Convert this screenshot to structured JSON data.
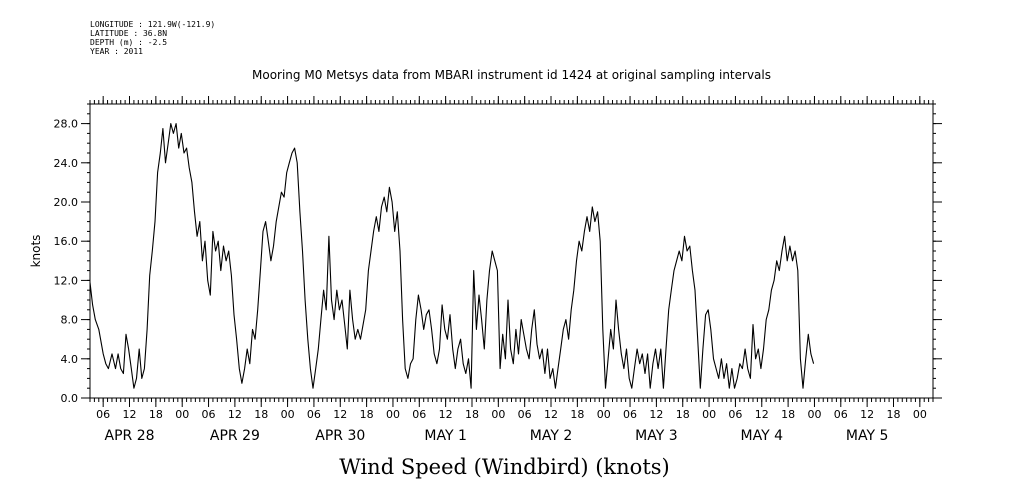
{
  "header": {
    "longitude": "LONGITUDE : 121.9W(-121.9)",
    "latitude": "LATITUDE : 36.8N",
    "depth": "DEPTH (m) : -2.5",
    "year": "YEAR : 2011"
  },
  "chart_data": {
    "type": "line",
    "title": "Mooring M0 Metsys data from MBARI instrument id 1424 at original sampling intervals",
    "xlabel": "Wind Speed (Windbird) (knots)",
    "ylabel": "knots",
    "ylim": [
      0,
      30
    ],
    "yticks": [
      0,
      4,
      8,
      12,
      16,
      20,
      24,
      28
    ],
    "ytick_labels": [
      "0.0",
      "4.0",
      "8.0",
      "12.0",
      "16.0",
      "20.0",
      "24.0",
      "28.0"
    ],
    "xlim": [
      3,
      195
    ],
    "x_unit": "hours since APR 28 00:00",
    "hour_ticks": [
      {
        "x": 6,
        "label": "06"
      },
      {
        "x": 12,
        "label": "12"
      },
      {
        "x": 18,
        "label": "18"
      },
      {
        "x": 24,
        "label": "00"
      },
      {
        "x": 30,
        "label": "06"
      },
      {
        "x": 36,
        "label": "12"
      },
      {
        "x": 42,
        "label": "18"
      },
      {
        "x": 48,
        "label": "00"
      },
      {
        "x": 54,
        "label": "06"
      },
      {
        "x": 60,
        "label": "12"
      },
      {
        "x": 66,
        "label": "18"
      },
      {
        "x": 72,
        "label": "00"
      },
      {
        "x": 78,
        "label": "06"
      },
      {
        "x": 84,
        "label": "12"
      },
      {
        "x": 90,
        "label": "18"
      },
      {
        "x": 96,
        "label": "00"
      },
      {
        "x": 102,
        "label": "06"
      },
      {
        "x": 108,
        "label": "12"
      },
      {
        "x": 114,
        "label": "18"
      },
      {
        "x": 120,
        "label": "00"
      },
      {
        "x": 126,
        "label": "06"
      },
      {
        "x": 132,
        "label": "12"
      },
      {
        "x": 138,
        "label": "18"
      },
      {
        "x": 144,
        "label": "00"
      },
      {
        "x": 150,
        "label": "06"
      },
      {
        "x": 156,
        "label": "12"
      },
      {
        "x": 162,
        "label": "18"
      },
      {
        "x": 168,
        "label": "00"
      },
      {
        "x": 174,
        "label": "06"
      },
      {
        "x": 180,
        "label": "12"
      },
      {
        "x": 186,
        "label": "18"
      },
      {
        "x": 192,
        "label": "00"
      }
    ],
    "day_labels": [
      {
        "x": 12,
        "label": "APR 28"
      },
      {
        "x": 36,
        "label": "APR 29"
      },
      {
        "x": 60,
        "label": "APR 30"
      },
      {
        "x": 84,
        "label": "MAY  1"
      },
      {
        "x": 108,
        "label": "MAY  2"
      },
      {
        "x": 132,
        "label": "MAY  3"
      },
      {
        "x": 156,
        "label": "MAY  4"
      },
      {
        "x": 180,
        "label": "MAY  5"
      }
    ],
    "series": [
      {
        "values": [
          [
            3.0,
            11.8
          ],
          [
            3.6,
            9.5
          ],
          [
            4.2,
            8.0
          ],
          [
            5.0,
            7.0
          ],
          [
            6.0,
            4.5
          ],
          [
            6.6,
            3.5
          ],
          [
            7.2,
            3.0
          ],
          [
            8.0,
            4.5
          ],
          [
            8.8,
            3.0
          ],
          [
            9.4,
            4.5
          ],
          [
            10.0,
            3.0
          ],
          [
            10.6,
            2.5
          ],
          [
            11.2,
            6.5
          ],
          [
            11.8,
            5.0
          ],
          [
            12.4,
            3.0
          ],
          [
            13.0,
            1.0
          ],
          [
            13.6,
            2.0
          ],
          [
            14.2,
            5.0
          ],
          [
            14.8,
            2.0
          ],
          [
            15.4,
            3.0
          ],
          [
            16.0,
            7.0
          ],
          [
            16.6,
            12.5
          ],
          [
            17.2,
            15.0
          ],
          [
            17.8,
            18.0
          ],
          [
            18.4,
            23.0
          ],
          [
            19.0,
            25.0
          ],
          [
            19.6,
            27.5
          ],
          [
            20.2,
            24.0
          ],
          [
            20.8,
            26.0
          ],
          [
            21.4,
            28.0
          ],
          [
            22.0,
            27.0
          ],
          [
            22.6,
            28.0
          ],
          [
            23.2,
            25.5
          ],
          [
            23.8,
            27.0
          ],
          [
            24.4,
            25.0
          ],
          [
            25.0,
            25.5
          ],
          [
            25.6,
            23.5
          ],
          [
            26.2,
            22.0
          ],
          [
            26.8,
            19.0
          ],
          [
            27.4,
            16.5
          ],
          [
            28.0,
            18.0
          ],
          [
            28.6,
            14.0
          ],
          [
            29.2,
            16.0
          ],
          [
            29.8,
            12.0
          ],
          [
            30.4,
            10.5
          ],
          [
            31.0,
            17.0
          ],
          [
            31.6,
            15.0
          ],
          [
            32.2,
            16.0
          ],
          [
            32.8,
            13.0
          ],
          [
            33.4,
            15.5
          ],
          [
            34.0,
            14.0
          ],
          [
            34.6,
            15.0
          ],
          [
            35.2,
            12.5
          ],
          [
            35.8,
            8.5
          ],
          [
            36.4,
            6.0
          ],
          [
            37.0,
            3.0
          ],
          [
            37.6,
            1.5
          ],
          [
            38.2,
            3.0
          ],
          [
            38.8,
            5.0
          ],
          [
            39.4,
            3.5
          ],
          [
            40.0,
            7.0
          ],
          [
            40.6,
            6.0
          ],
          [
            41.2,
            9.0
          ],
          [
            41.8,
            13.0
          ],
          [
            42.4,
            17.0
          ],
          [
            43.0,
            18.0
          ],
          [
            43.6,
            16.0
          ],
          [
            44.2,
            14.0
          ],
          [
            44.8,
            15.5
          ],
          [
            45.4,
            18.0
          ],
          [
            46.0,
            19.5
          ],
          [
            46.6,
            21.0
          ],
          [
            47.2,
            20.5
          ],
          [
            47.8,
            23.0
          ],
          [
            48.4,
            24.0
          ],
          [
            49.0,
            25.0
          ],
          [
            49.6,
            25.5
          ],
          [
            50.2,
            24.0
          ],
          [
            50.8,
            19.0
          ],
          [
            51.4,
            15.0
          ],
          [
            52.0,
            10.0
          ],
          [
            52.6,
            6.0
          ],
          [
            53.2,
            3.0
          ],
          [
            53.8,
            1.0
          ],
          [
            54.4,
            3.0
          ],
          [
            55.0,
            5.0
          ],
          [
            55.6,
            8.0
          ],
          [
            56.2,
            11.0
          ],
          [
            56.8,
            9.0
          ],
          [
            57.4,
            16.5
          ],
          [
            58.0,
            10.0
          ],
          [
            58.6,
            8.0
          ],
          [
            59.2,
            11.0
          ],
          [
            59.8,
            9.0
          ],
          [
            60.4,
            10.0
          ],
          [
            61.0,
            7.5
          ],
          [
            61.6,
            5.0
          ],
          [
            62.2,
            11.0
          ],
          [
            62.8,
            8.0
          ],
          [
            63.4,
            6.0
          ],
          [
            64.0,
            7.0
          ],
          [
            64.6,
            6.0
          ],
          [
            65.2,
            7.5
          ],
          [
            65.8,
            9.0
          ],
          [
            66.4,
            13.0
          ],
          [
            67.0,
            15.0
          ],
          [
            67.6,
            17.0
          ],
          [
            68.2,
            18.5
          ],
          [
            68.8,
            17.0
          ],
          [
            69.4,
            19.5
          ],
          [
            70.0,
            20.5
          ],
          [
            70.6,
            19.0
          ],
          [
            71.2,
            21.5
          ],
          [
            71.8,
            20.0
          ],
          [
            72.4,
            17.0
          ],
          [
            73.0,
            19.0
          ],
          [
            73.6,
            15.0
          ],
          [
            74.2,
            8.0
          ],
          [
            74.8,
            3.0
          ],
          [
            75.4,
            2.0
          ],
          [
            76.0,
            3.5
          ],
          [
            76.6,
            4.0
          ],
          [
            77.2,
            8.0
          ],
          [
            77.8,
            10.5
          ],
          [
            78.4,
            9.0
          ],
          [
            79.0,
            7.0
          ],
          [
            79.6,
            8.5
          ],
          [
            80.2,
            9.0
          ],
          [
            80.8,
            7.0
          ],
          [
            81.4,
            4.5
          ],
          [
            82.0,
            3.5
          ],
          [
            82.6,
            5.0
          ],
          [
            83.2,
            9.5
          ],
          [
            83.8,
            7.0
          ],
          [
            84.4,
            6.0
          ],
          [
            85.0,
            8.5
          ],
          [
            85.6,
            5.0
          ],
          [
            86.2,
            3.0
          ],
          [
            86.8,
            5.0
          ],
          [
            87.4,
            6.0
          ],
          [
            88.0,
            3.5
          ],
          [
            88.6,
            2.5
          ],
          [
            89.2,
            4.0
          ],
          [
            89.8,
            1.0
          ],
          [
            90.4,
            13.0
          ],
          [
            91.0,
            7.0
          ],
          [
            91.6,
            10.5
          ],
          [
            92.2,
            8.0
          ],
          [
            92.8,
            5.0
          ],
          [
            93.4,
            10.0
          ],
          [
            94.0,
            13.0
          ],
          [
            94.6,
            15.0
          ],
          [
            95.2,
            14.0
          ],
          [
            95.8,
            13.0
          ],
          [
            96.4,
            3.0
          ],
          [
            97.0,
            6.5
          ],
          [
            97.6,
            4.0
          ],
          [
            98.2,
            10.0
          ],
          [
            98.8,
            5.0
          ],
          [
            99.4,
            3.5
          ],
          [
            100.0,
            7.0
          ],
          [
            100.6,
            4.5
          ],
          [
            101.2,
            8.0
          ],
          [
            101.8,
            6.5
          ],
          [
            102.4,
            5.0
          ],
          [
            103.0,
            4.0
          ],
          [
            103.6,
            7.0
          ],
          [
            104.2,
            9.0
          ],
          [
            104.8,
            5.5
          ],
          [
            105.4,
            4.0
          ],
          [
            106.0,
            5.0
          ],
          [
            106.6,
            2.5
          ],
          [
            107.2,
            5.0
          ],
          [
            107.8,
            2.0
          ],
          [
            108.4,
            3.0
          ],
          [
            109.0,
            1.0
          ],
          [
            109.6,
            3.0
          ],
          [
            110.2,
            5.0
          ],
          [
            110.8,
            7.0
          ],
          [
            111.4,
            8.0
          ],
          [
            112.0,
            6.0
          ],
          [
            112.6,
            9.0
          ],
          [
            113.2,
            11.0
          ],
          [
            113.8,
            14.0
          ],
          [
            114.4,
            16.0
          ],
          [
            115.0,
            15.0
          ],
          [
            115.6,
            17.0
          ],
          [
            116.2,
            18.5
          ],
          [
            116.8,
            17.0
          ],
          [
            117.4,
            19.5
          ],
          [
            118.0,
            18.0
          ],
          [
            118.6,
            19.0
          ],
          [
            119.2,
            16.0
          ],
          [
            119.8,
            7.0
          ],
          [
            120.4,
            1.0
          ],
          [
            121.0,
            4.0
          ],
          [
            121.6,
            7.0
          ],
          [
            122.2,
            5.0
          ],
          [
            122.8,
            10.0
          ],
          [
            123.4,
            7.0
          ],
          [
            124.0,
            4.5
          ],
          [
            124.6,
            3.0
          ],
          [
            125.2,
            5.0
          ],
          [
            125.8,
            2.0
          ],
          [
            126.4,
            1.0
          ],
          [
            127.0,
            3.0
          ],
          [
            127.6,
            5.0
          ],
          [
            128.2,
            3.5
          ],
          [
            128.8,
            4.5
          ],
          [
            129.4,
            2.5
          ],
          [
            130.0,
            4.5
          ],
          [
            130.6,
            1.0
          ],
          [
            131.2,
            3.5
          ],
          [
            131.8,
            5.0
          ],
          [
            132.4,
            3.0
          ],
          [
            133.0,
            5.0
          ],
          [
            133.6,
            1.0
          ],
          [
            134.2,
            5.0
          ],
          [
            134.8,
            9.0
          ],
          [
            135.4,
            11.0
          ],
          [
            136.0,
            13.0
          ],
          [
            136.6,
            14.0
          ],
          [
            137.2,
            15.0
          ],
          [
            137.8,
            14.0
          ],
          [
            138.4,
            16.5
          ],
          [
            139.0,
            15.0
          ],
          [
            139.6,
            15.5
          ],
          [
            140.2,
            13.0
          ],
          [
            140.8,
            11.0
          ],
          [
            141.4,
            6.0
          ],
          [
            142.0,
            1.0
          ],
          [
            142.6,
            5.0
          ],
          [
            143.2,
            8.5
          ],
          [
            143.8,
            9.0
          ],
          [
            144.4,
            7.0
          ],
          [
            145.0,
            4.0
          ],
          [
            145.6,
            3.0
          ],
          [
            146.2,
            2.0
          ],
          [
            146.8,
            4.0
          ],
          [
            147.4,
            2.0
          ],
          [
            148.0,
            3.5
          ],
          [
            148.6,
            1.0
          ],
          [
            149.2,
            3.0
          ],
          [
            149.8,
            1.0
          ],
          [
            150.4,
            2.0
          ],
          [
            151.0,
            3.5
          ],
          [
            151.6,
            3.0
          ],
          [
            152.2,
            5.0
          ],
          [
            152.8,
            3.0
          ],
          [
            153.4,
            2.0
          ],
          [
            154.0,
            7.5
          ],
          [
            154.6,
            4.0
          ],
          [
            155.2,
            5.0
          ],
          [
            155.8,
            3.0
          ],
          [
            156.4,
            5.0
          ],
          [
            157.0,
            8.0
          ],
          [
            157.6,
            9.0
          ],
          [
            158.2,
            11.0
          ],
          [
            158.8,
            12.0
          ],
          [
            159.4,
            14.0
          ],
          [
            160.0,
            13.0
          ],
          [
            160.6,
            15.0
          ],
          [
            161.2,
            16.5
          ],
          [
            161.8,
            14.0
          ],
          [
            162.4,
            15.5
          ],
          [
            163.0,
            14.0
          ],
          [
            163.6,
            15.0
          ],
          [
            164.2,
            13.0
          ],
          [
            164.8,
            4.0
          ],
          [
            165.4,
            1.0
          ],
          [
            166.0,
            4.0
          ],
          [
            166.6,
            6.5
          ],
          [
            167.2,
            4.5
          ],
          [
            167.8,
            3.5
          ]
        ]
      }
    ]
  }
}
